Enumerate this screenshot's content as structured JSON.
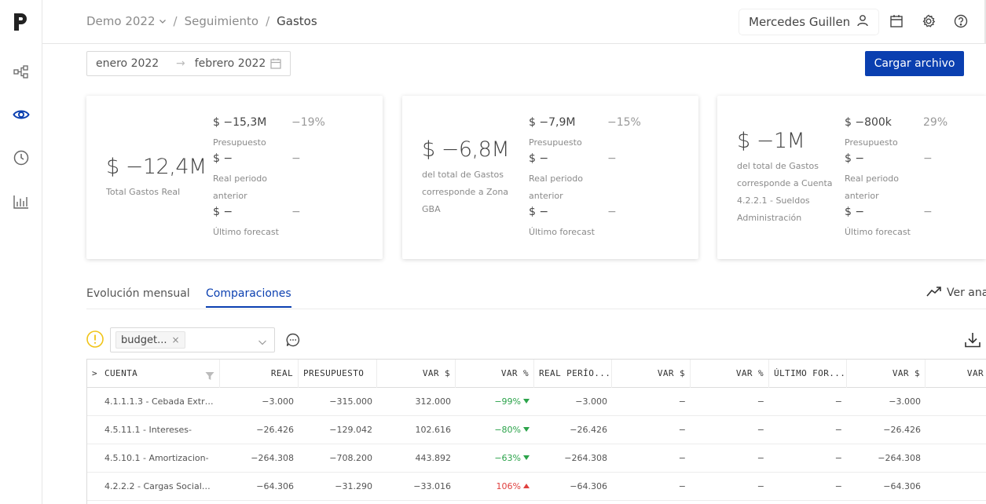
{
  "breadcrumb": {
    "project": "Demo 2022",
    "section": "Seguimiento",
    "page": "Gastos"
  },
  "user": {
    "name": "Mercedes Guillen"
  },
  "daterange": {
    "from": "enero 2022",
    "arrow": "→",
    "to": "febrero 2022"
  },
  "actions": {
    "upload_label": "Cargar archivo"
  },
  "cards": [
    {
      "big": "$ −12,4M",
      "desc": [
        "Total Gastos Real"
      ],
      "metrics": [
        {
          "value": "$ −15,3M",
          "label": "Presupuesto",
          "pct": "−19%"
        },
        {
          "value": "$ −",
          "label": "Real periodo anterior",
          "label_lines": [
            "Real periodo",
            "anterior"
          ],
          "pct": "−"
        },
        {
          "value": "$ −",
          "label": "Último forecast",
          "pct": "−"
        }
      ]
    },
    {
      "big": "$ −6,8M",
      "desc": [
        "del total de Gastos",
        "corresponde a Zona",
        "GBA"
      ],
      "metrics": [
        {
          "value": "$ −7,9M",
          "label": "Presupuesto",
          "pct": "−15%"
        },
        {
          "value": "$ −",
          "label_lines": [
            "Real periodo",
            "anterior"
          ],
          "pct": "−"
        },
        {
          "value": "$ −",
          "label": "Último forecast",
          "pct": "−"
        }
      ]
    },
    {
      "big": "$ −1M",
      "desc": [
        "del total de Gastos",
        "corresponde a Cuenta",
        "4.2.2.1 - Sueldos",
        "Administración"
      ],
      "metrics": [
        {
          "value": "$ −800k",
          "label": "Presupuesto",
          "pct": "29%"
        },
        {
          "value": "$ −",
          "label_lines": [
            "Real periodo",
            "anterior"
          ],
          "pct": "−"
        },
        {
          "value": "$ −",
          "label": "Último forecast",
          "pct": "−"
        }
      ]
    }
  ],
  "tabs": [
    {
      "label": "Evolución mensual",
      "active": false
    },
    {
      "label": "Comparaciones",
      "active": true
    }
  ],
  "ver_analisis": "Ver anal",
  "filter": {
    "tag": "budget...",
    "remove": "×"
  },
  "table": {
    "expand": ">",
    "headers": [
      "CUENTA",
      "REAL",
      "PRESUPUESTO",
      "VAR $",
      "VAR %",
      "REAL PERÍO...",
      "VAR $",
      "VAR %",
      "ÚLTIMO FOR...",
      "VAR $",
      "VAR"
    ],
    "rows": [
      {
        "cuenta": "4.1.1.1.3 - Cebada Extranj...",
        "real": "−3.000",
        "presupuesto": "−315.000",
        "var": "312.000",
        "varpct": "−99%",
        "dir": "down",
        "real_ant": "−3.000",
        "var2": "−",
        "varpct2": "−",
        "forecast": "−",
        "var3": "−3.000"
      },
      {
        "cuenta": "4.5.11.1 - Intereses-",
        "real": "−26.426",
        "presupuesto": "−129.042",
        "var": "102.616",
        "varpct": "−80%",
        "dir": "down",
        "real_ant": "−26.426",
        "var2": "−",
        "varpct2": "−",
        "forecast": "−",
        "var3": "−26.426"
      },
      {
        "cuenta": "4.5.10.1 - Amortizacion-",
        "real": "−264.308",
        "presupuesto": "−708.200",
        "var": "443.892",
        "varpct": "−63%",
        "dir": "down",
        "real_ant": "−264.308",
        "var2": "−",
        "varpct2": "−",
        "forecast": "−",
        "var3": "−264.308"
      },
      {
        "cuenta": "4.2.2.2 - Cargas Sociale...",
        "real": "−64.306",
        "presupuesto": "−31.290",
        "var": "−33.016",
        "varpct": "106%",
        "dir": "up",
        "real_ant": "−64.306",
        "var2": "−",
        "varpct2": "−",
        "forecast": "−",
        "var3": "−64.306"
      }
    ]
  },
  "colors": {
    "primary": "#0a3fb0",
    "positive": "#2ba34a",
    "negative": "#e0403e",
    "warning": "#f0c419"
  },
  "icons": [
    "logo-icon",
    "hierarchy-icon",
    "eye-icon",
    "clock-icon",
    "bar-chart-icon",
    "chevron-down-icon",
    "user-icon",
    "calendar-icon",
    "gear-icon",
    "help-icon",
    "trend-icon",
    "warning-icon",
    "comment-icon",
    "download-icon",
    "filter-icon"
  ]
}
